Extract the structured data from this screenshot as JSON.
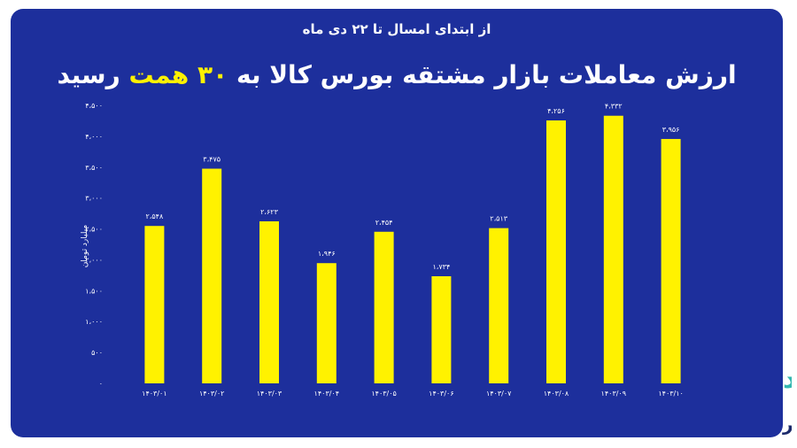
{
  "header": {
    "subtitle": "از ابتدای امسال تا ۲۲ دی ماه",
    "title_part1": "ارزش معاملات بازار مشتقه بورس کالا به",
    "title_highlight": "۳۰ همت",
    "title_part2": "رسید"
  },
  "colors": {
    "background": "#1d2f9c",
    "bar": "#fff200",
    "text": "#ffffff",
    "highlight": "#fff200"
  },
  "watermark": {
    "text": "صفحه اقتصاد",
    "sub_text": "کالا خبر"
  },
  "chart_data": {
    "type": "bar",
    "title": "ارزش معاملات بازار مشتقه بورس کالا به ۳۰ همت رسید",
    "ylabel": "میلیارد تومان",
    "xlabel": "",
    "ylim": [
      0,
      4500
    ],
    "grid": false,
    "yticks": [
      0,
      500,
      1000,
      1500,
      2000,
      2500,
      3000,
      3500,
      4000,
      4500
    ],
    "ytick_labels": [
      "۰",
      "۵۰۰",
      "۱،۰۰۰",
      "۱،۵۰۰",
      "۲،۰۰۰",
      "۲،۵۰۰",
      "۳،۰۰۰",
      "۳،۵۰۰",
      "۴،۰۰۰",
      "۴،۵۰۰"
    ],
    "categories": [
      "۱۴۰۳/۰۱",
      "۱۴۰۳/۰۲",
      "۱۴۰۳/۰۳",
      "۱۴۰۳/۰۴",
      "۱۴۰۳/۰۵",
      "۱۴۰۳/۰۶",
      "۱۴۰۳/۰۷",
      "۱۴۰۳/۰۸",
      "۱۴۰۳/۰۹",
      "۱۴۰۳/۱۰"
    ],
    "values": [
      2548,
      3475,
      2623,
      1946,
      2454,
      1734,
      2513,
      4256,
      4332,
      3956
    ],
    "value_labels": [
      "۲،۵۴۸",
      "۳،۴۷۵",
      "۲،۶۲۳",
      "۱،۹۴۶",
      "۲،۴۵۴",
      "۱،۷۳۴",
      "۲،۵۱۳",
      "۴،۲۵۶",
      "۴،۳۳۲",
      "۳،۹۵۶"
    ]
  }
}
